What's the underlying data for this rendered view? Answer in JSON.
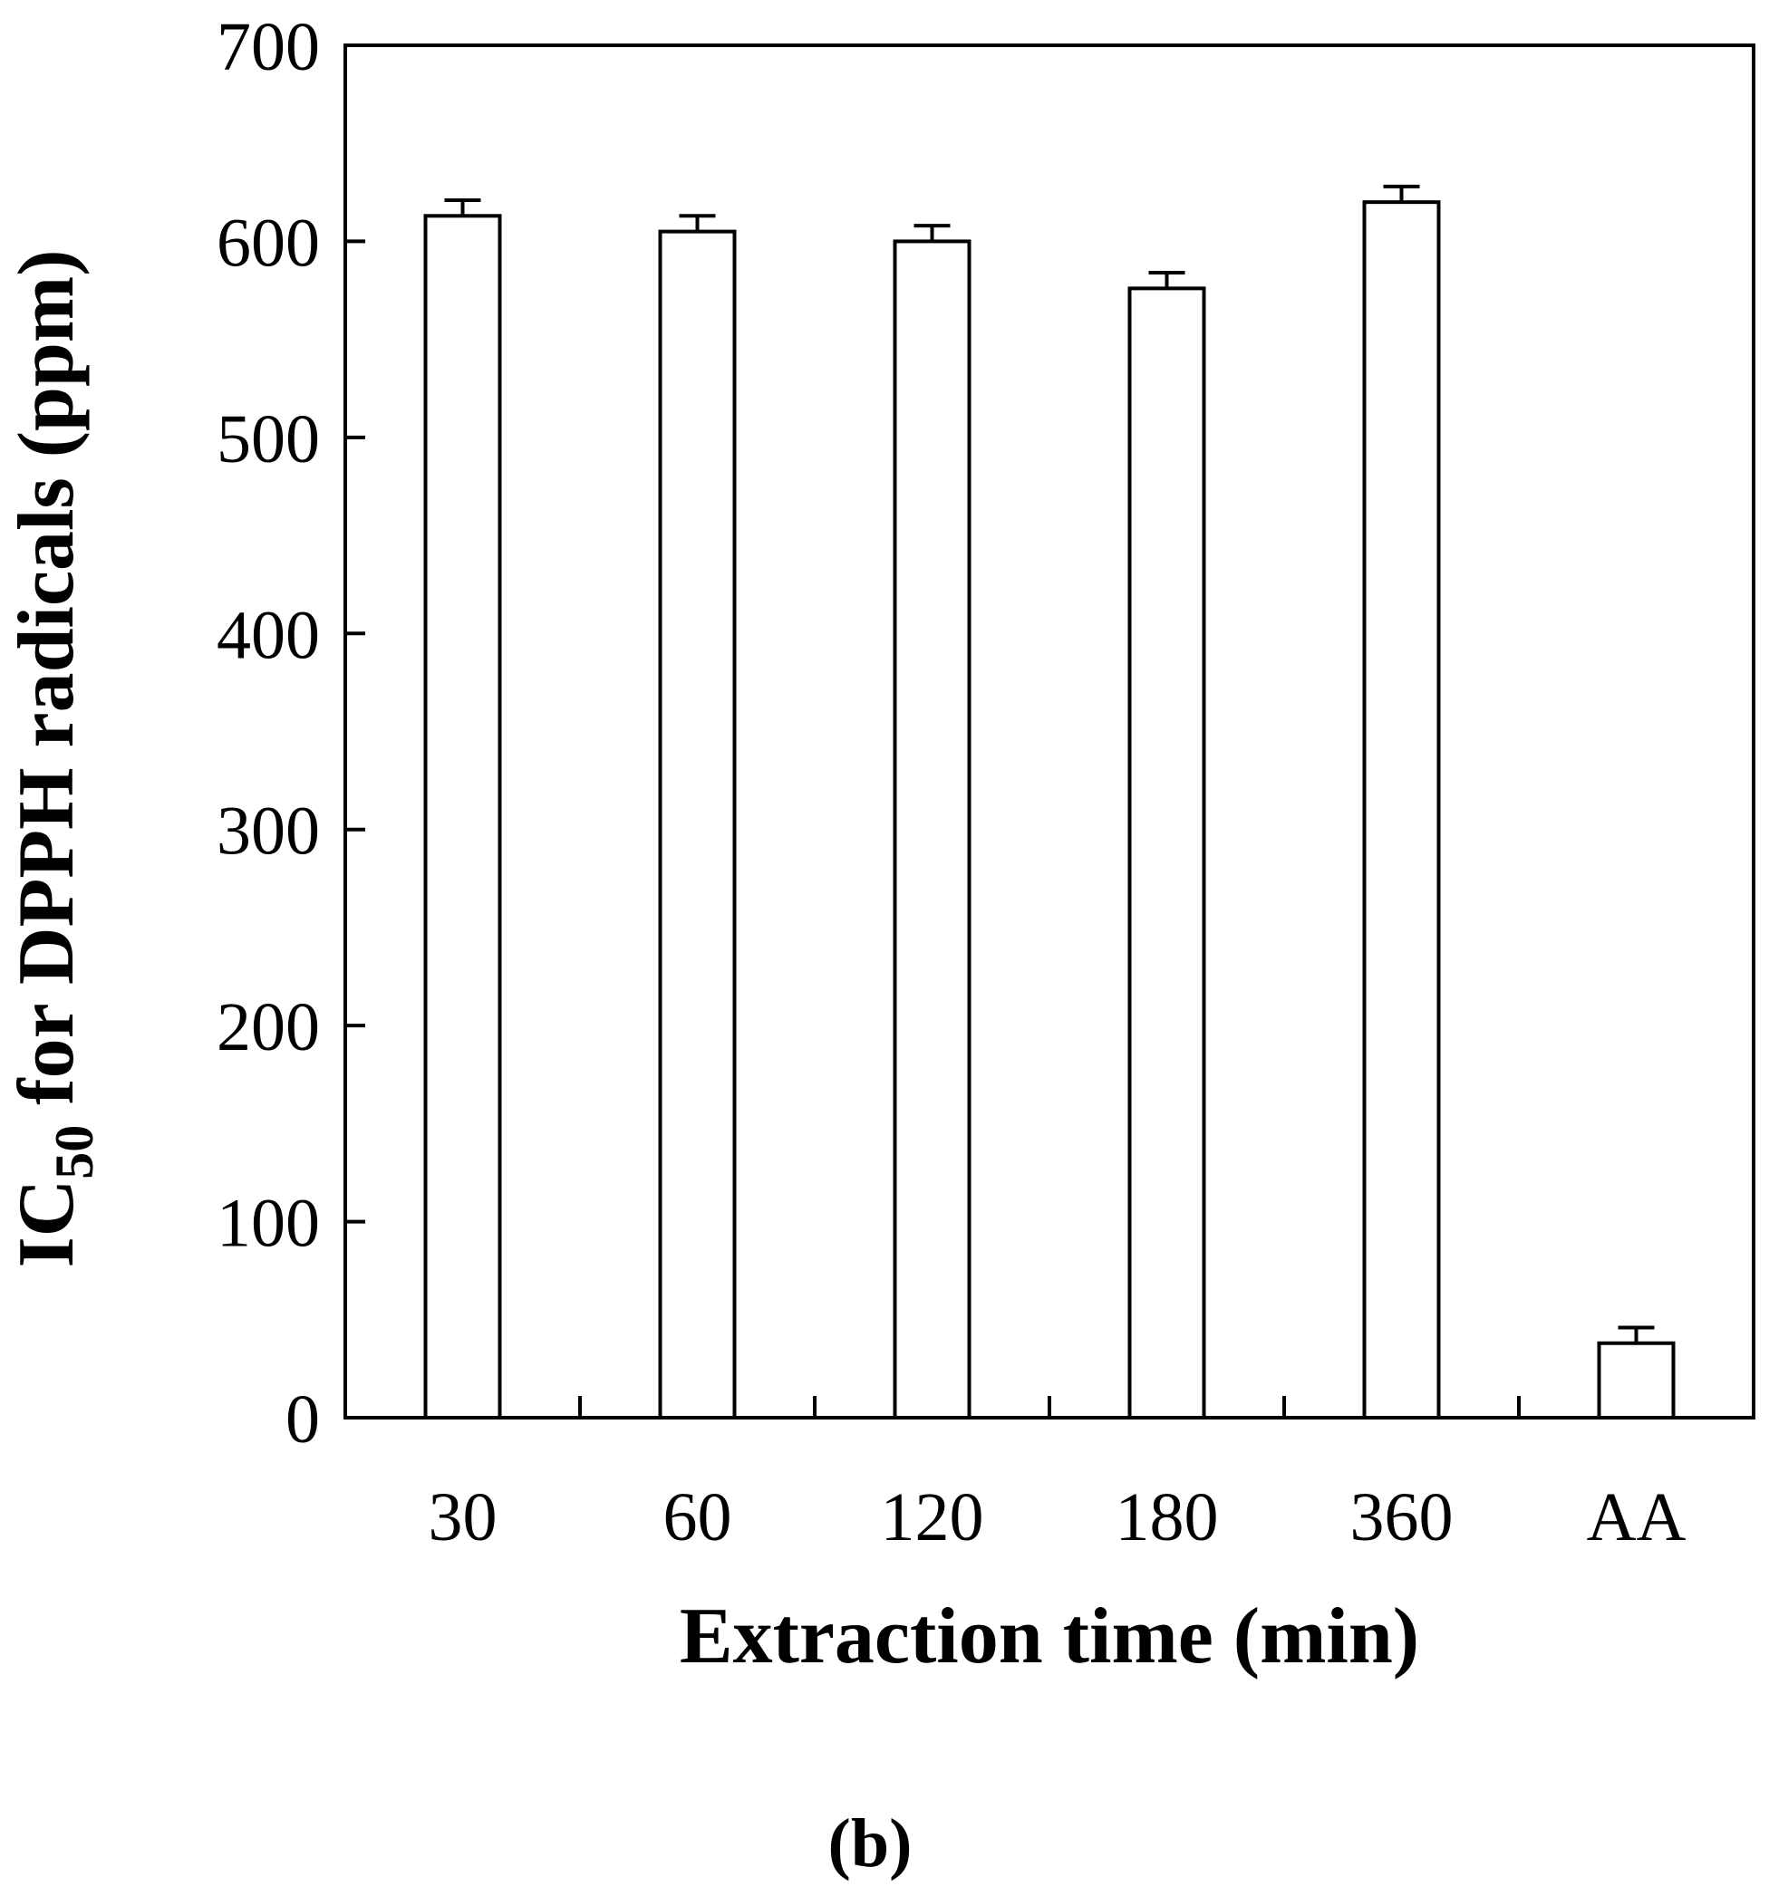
{
  "chart_data": {
    "type": "bar",
    "categories": [
      "30",
      "60",
      "120",
      "180",
      "360",
      "AA"
    ],
    "values": [
      613,
      605,
      600,
      576,
      620,
      38
    ],
    "errors": [
      8,
      8,
      8,
      8,
      8,
      8
    ],
    "xlabel": "Extraction time (min)",
    "ylabel": {
      "prefix": "IC",
      "subscript": "50",
      "suffix": " for DPPH radicals (ppm)"
    },
    "ylim": [
      0,
      700
    ],
    "yticks": [
      0,
      100,
      200,
      300,
      400,
      500,
      600,
      700
    ],
    "grid": false,
    "legend": "none",
    "bar_fill": "#ffffff",
    "bar_stroke": "#000000",
    "panel_label": "(b)"
  }
}
